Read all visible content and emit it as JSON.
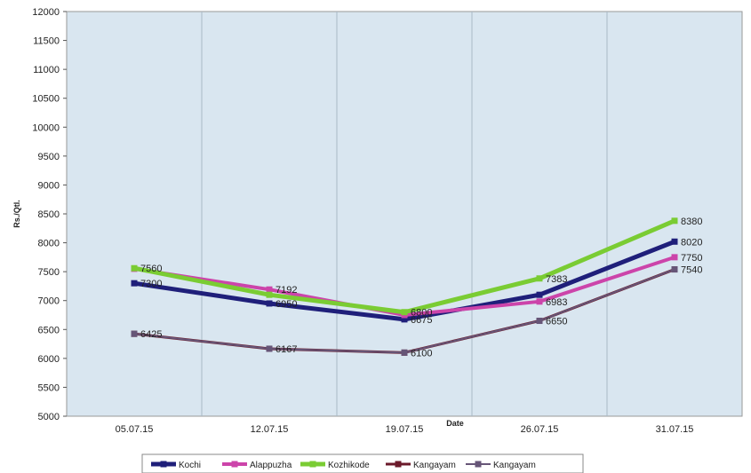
{
  "chart_data": {
    "type": "line",
    "title": "",
    "xlabel": "Date",
    "ylabel": "Rs./Qtl.",
    "categories": [
      "05.07.15",
      "12.07.15",
      "19.07.15",
      "26.07.15",
      "31.07.15"
    ],
    "ylim": [
      5000,
      12000
    ],
    "yticks": [
      5000,
      5500,
      6000,
      6500,
      7000,
      7500,
      8000,
      8500,
      9000,
      9500,
      10000,
      10500,
      11000,
      11500,
      12000
    ],
    "grid": true,
    "legend_position": "bottom",
    "series": [
      {
        "name": "Kochi",
        "color": "#1f1f7a",
        "values": [
          7300,
          6950,
          6675,
          7100,
          8020
        ],
        "labels": [
          "7300",
          "6950",
          "6675",
          "",
          "8020"
        ]
      },
      {
        "name": "Alappuzha",
        "color": "#cc44aa",
        "values": [
          7550,
          7192,
          6750,
          6983,
          7750
        ],
        "labels": [
          "",
          "7192",
          "",
          "6983",
          "7750"
        ]
      },
      {
        "name": "Kozhikode",
        "color": "#7acc33",
        "values": [
          7560,
          7100,
          6800,
          7383,
          8380
        ],
        "labels": [
          "7560",
          "",
          "6800",
          "7383",
          "8380"
        ]
      },
      {
        "name": "Kangayam",
        "color": "#6b1a2a",
        "values": [
          6425,
          6167,
          6100,
          6650,
          7540
        ],
        "labels": [
          "6425",
          "6167",
          "6100",
          "6650",
          "7540"
        ]
      },
      {
        "name": "Kangayam",
        "color": "#665577",
        "values": [
          6425,
          6167,
          6100,
          6650,
          7540
        ],
        "labels": []
      }
    ]
  }
}
